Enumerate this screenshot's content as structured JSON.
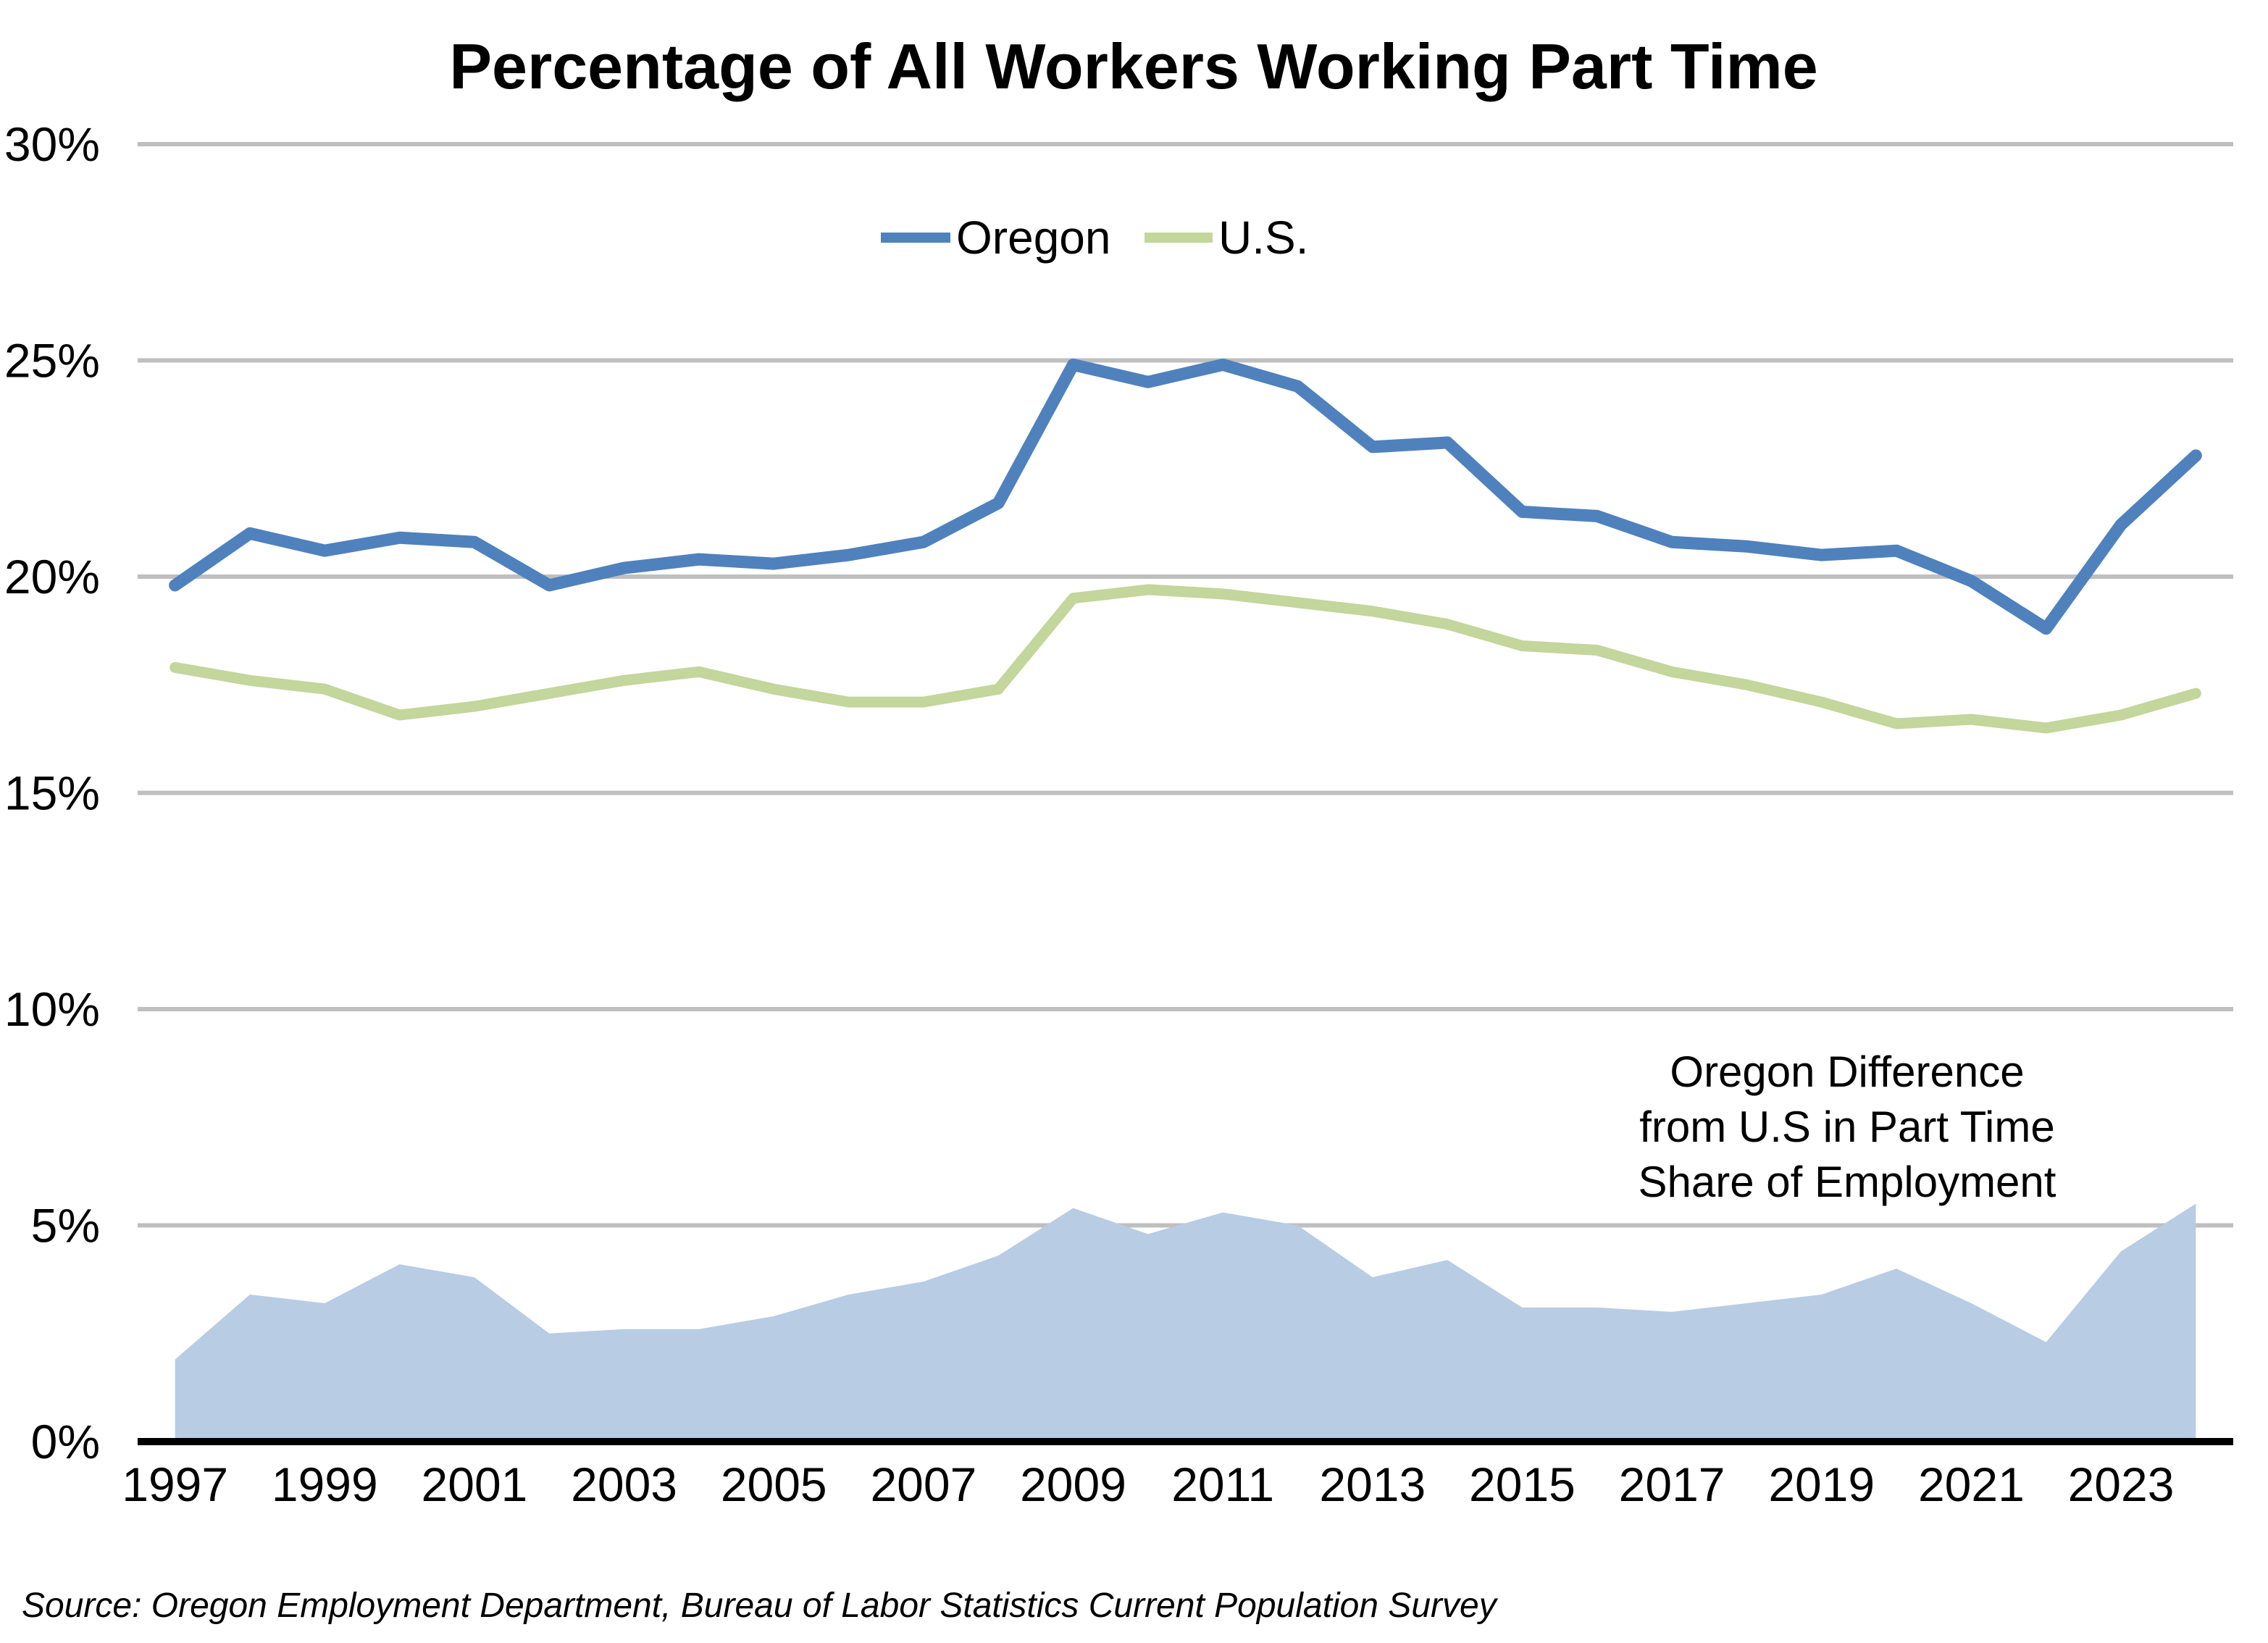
{
  "title": "Percentage of All Workers Working Part Time",
  "legend": {
    "oregon_label": "Oregon",
    "us_label": "U.S."
  },
  "annotation": {
    "line1": "Oregon Difference",
    "line2": "from U.S in Part Time",
    "line3": "Share of Employment"
  },
  "source": "Source: Oregon Employment Department, Bureau of Labor Statistics Current Population Survey",
  "colors": {
    "oregon_line": "#4F81BD",
    "us_line": "#C3D69B",
    "difference_area": "#B8CCE4",
    "gridline": "#BFBFBF",
    "axis": "#000000",
    "background": "#FFFFFF"
  },
  "chart_data": {
    "type": "line+area",
    "title": "Percentage of All Workers Working Part Time",
    "x": [
      1997,
      1998,
      1999,
      2000,
      2001,
      2002,
      2003,
      2004,
      2005,
      2006,
      2007,
      2008,
      2009,
      2010,
      2011,
      2012,
      2013,
      2014,
      2015,
      2016,
      2017,
      2018,
      2019,
      2020,
      2021,
      2022,
      2023,
      2024
    ],
    "x_tick_labels": [
      "1997",
      "1999",
      "2001",
      "2003",
      "2005",
      "2007",
      "2009",
      "2011",
      "2013",
      "2015",
      "2017",
      "2019",
      "2021",
      "2023"
    ],
    "y_axis": {
      "min": 0,
      "max": 30,
      "tick_step": 5,
      "tick_labels": [
        "0%",
        "5%",
        "10%",
        "15%",
        "20%",
        "25%",
        "30%"
      ]
    },
    "grid": "horizontal",
    "legend_position": "top-center",
    "series": [
      {
        "name": "Oregon",
        "type": "line",
        "color": "#4F81BD",
        "values": [
          19.8,
          21.0,
          20.6,
          20.9,
          20.8,
          19.8,
          20.2,
          20.4,
          20.3,
          20.5,
          20.8,
          21.7,
          24.9,
          24.5,
          24.9,
          24.4,
          23.0,
          23.1,
          21.5,
          21.4,
          20.8,
          20.7,
          20.5,
          20.6,
          19.9,
          18.8,
          21.2,
          22.8
        ]
      },
      {
        "name": "U.S.",
        "type": "line",
        "color": "#C3D69B",
        "values": [
          17.9,
          17.6,
          17.4,
          16.8,
          17.0,
          17.3,
          17.6,
          17.8,
          17.4,
          17.1,
          17.1,
          17.4,
          19.5,
          19.7,
          19.6,
          19.4,
          19.2,
          18.9,
          18.4,
          18.3,
          17.8,
          17.5,
          17.1,
          16.6,
          16.7,
          16.5,
          16.8,
          17.3
        ]
      },
      {
        "name": "Oregon Difference from U.S in Part Time Share of Employment",
        "type": "area",
        "color": "#B8CCE4",
        "values": [
          1.9,
          3.4,
          3.2,
          4.1,
          3.8,
          2.5,
          2.6,
          2.6,
          2.9,
          3.4,
          3.7,
          4.3,
          5.4,
          4.8,
          5.3,
          5.0,
          3.8,
          4.2,
          3.1,
          3.1,
          3.0,
          3.2,
          3.4,
          4.0,
          3.2,
          2.3,
          4.4,
          5.5
        ]
      }
    ]
  }
}
